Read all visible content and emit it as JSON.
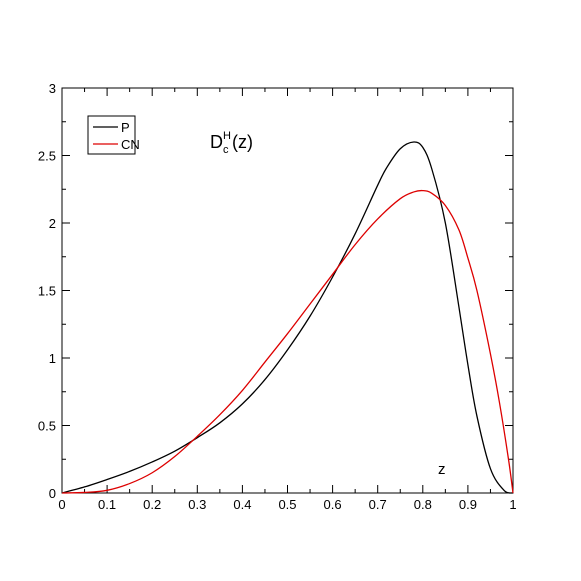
{
  "chart_data": {
    "type": "line",
    "title": {
      "base": "D",
      "subscript": "c",
      "superscript": "H",
      "argument": "(z)"
    },
    "xlabel": "z",
    "ylabel": "",
    "xlim": [
      0,
      1
    ],
    "ylim": [
      0,
      3
    ],
    "x_ticks": [
      "0",
      "0.1",
      "0.2",
      "0.3",
      "0.4",
      "0.5",
      "0.6",
      "0.7",
      "0.8",
      "0.9",
      "1"
    ],
    "y_ticks": [
      "0",
      "0.5",
      "1",
      "1.5",
      "2",
      "2.5",
      "3"
    ],
    "grid": false,
    "legend_position": "top-left",
    "series": [
      {
        "name": "P",
        "color": "#000000",
        "x": [
          0,
          0.05,
          0.1,
          0.15,
          0.2,
          0.25,
          0.3,
          0.35,
          0.4,
          0.45,
          0.5,
          0.55,
          0.6,
          0.65,
          0.7,
          0.72,
          0.75,
          0.78,
          0.8,
          0.82,
          0.85,
          0.88,
          0.9,
          0.92,
          0.95,
          0.98,
          1.0
        ],
        "y": [
          0,
          0.045,
          0.1,
          0.16,
          0.23,
          0.31,
          0.41,
          0.52,
          0.66,
          0.84,
          1.06,
          1.31,
          1.6,
          1.92,
          2.28,
          2.41,
          2.55,
          2.6,
          2.56,
          2.4,
          2.0,
          1.38,
          0.95,
          0.57,
          0.18,
          0.02,
          0
        ]
      },
      {
        "name": "CN",
        "color": "#dd0000",
        "x": [
          0,
          0.05,
          0.1,
          0.15,
          0.2,
          0.25,
          0.3,
          0.35,
          0.4,
          0.45,
          0.5,
          0.55,
          0.6,
          0.65,
          0.7,
          0.75,
          0.78,
          0.8,
          0.82,
          0.85,
          0.88,
          0.9,
          0.92,
          0.95,
          0.97,
          0.99,
          1.0
        ],
        "y": [
          0,
          0.004,
          0.02,
          0.07,
          0.15,
          0.27,
          0.42,
          0.58,
          0.76,
          0.97,
          1.18,
          1.4,
          1.62,
          1.84,
          2.03,
          2.18,
          2.23,
          2.24,
          2.22,
          2.13,
          1.95,
          1.74,
          1.5,
          1.03,
          0.67,
          0.25,
          0
        ]
      }
    ]
  }
}
